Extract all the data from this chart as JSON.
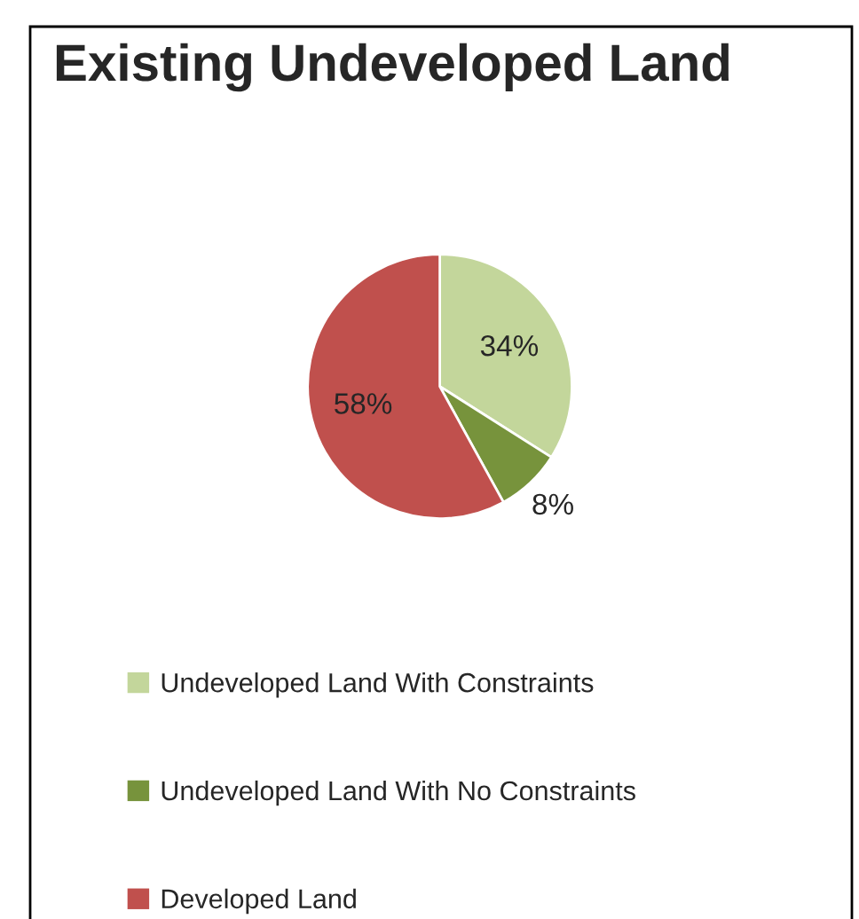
{
  "chart_data": {
    "type": "pie",
    "title": "Existing Undeveloped Land",
    "categories": [
      "Undeveloped Land With Constraints",
      "Undeveloped Land With No Constraints",
      "Developed Land"
    ],
    "values": [
      34,
      8,
      58
    ],
    "colors": [
      "#c3d69b",
      "#77933c",
      "#c0504d"
    ],
    "value_labels": [
      "34%",
      "8%",
      "58%"
    ],
    "legend": "bottom"
  }
}
